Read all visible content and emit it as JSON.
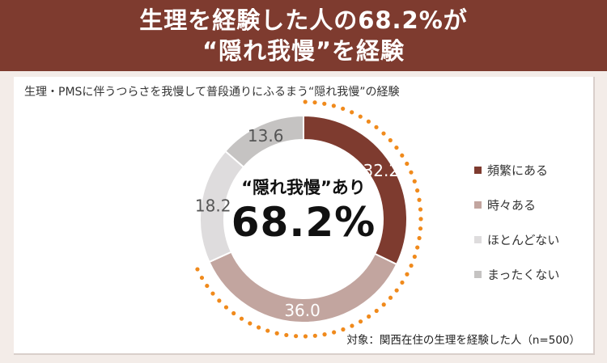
{
  "banner": {
    "line1": "生理を経験した人の68.2%が",
    "line2": "“隠れ我慢”を経験"
  },
  "center": {
    "label": "“隠れ我慢”あり",
    "value": "68.2%"
  },
  "footnote": "対象：関西在住の生理を経験した人（n=500）",
  "chart_data": {
    "type": "pie",
    "donut": true,
    "title": "生理・PMSに伴うつらさを我慢して普段通りにふるまう“隠れ我慢”の経験",
    "categories": [
      "頻繁にある",
      "時々ある",
      "ほとんどない",
      "まったくない"
    ],
    "values": [
      32.2,
      36.0,
      18.2,
      13.6
    ],
    "value_labels": [
      "32.2",
      "36.0",
      "18.2",
      "13.6"
    ],
    "colors": [
      "#7e3b2f",
      "#c2a59f",
      "#dedcdd",
      "#c5c3c2"
    ],
    "label_colors": [
      "#ffffff",
      "#ffffff",
      "#555555",
      "#555555"
    ],
    "legend_position": "right",
    "highlight_color": "#f08a1c"
  }
}
